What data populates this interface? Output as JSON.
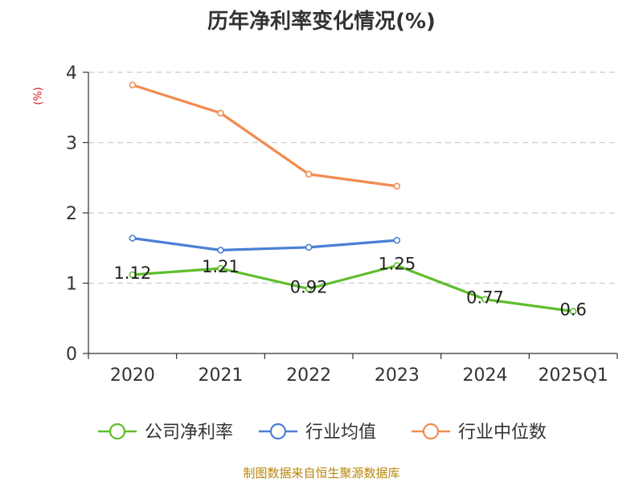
{
  "title": "历年净利率变化情况(%)",
  "unit_label": "(%)",
  "source": "制图数据来自恒生聚源数据库",
  "colors": {
    "series": [
      "#5fbe2b",
      "#4a7fd4",
      "#f28b50"
    ],
    "grid": "#cccccc",
    "axis": "#333333",
    "unit": "#d8141b",
    "source": "#b8860b"
  },
  "chart_data": {
    "type": "line",
    "title": "历年净利率变化情况(%)",
    "xlabel": "",
    "ylabel": "(%)",
    "categories": [
      "2020",
      "2021",
      "2022",
      "2023",
      "2024",
      "2025Q1"
    ],
    "ylim": [
      0,
      4
    ],
    "yticks": [
      0,
      1,
      2,
      3,
      4
    ],
    "grid": true,
    "legend_position": "bottom",
    "series": [
      {
        "name": "公司净利率",
        "values": [
          1.12,
          1.21,
          0.92,
          1.25,
          0.77,
          0.6
        ],
        "labels": [
          "1.12",
          "1.21",
          "0.92",
          "1.25",
          "0.77",
          "0.6"
        ]
      },
      {
        "name": "行业均值",
        "values": [
          1.64,
          1.47,
          1.51,
          1.61,
          null,
          null
        ]
      },
      {
        "name": "行业中位数",
        "values": [
          3.82,
          3.42,
          2.55,
          2.38,
          null,
          null
        ]
      }
    ]
  }
}
